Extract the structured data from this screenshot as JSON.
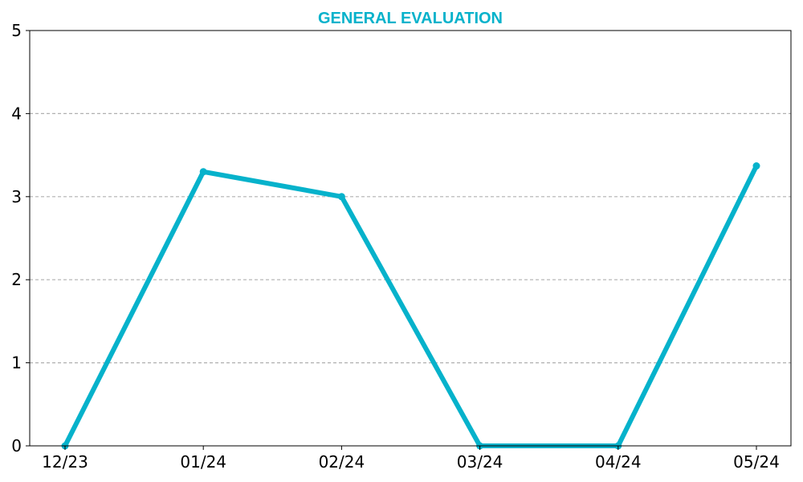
{
  "chart_data": {
    "type": "line",
    "title": "GENERAL EVALUATION",
    "xlabel": "",
    "ylabel": "",
    "categories": [
      "12/23",
      "01/24",
      "02/24",
      "03/24",
      "04/24",
      "05/24"
    ],
    "series": [
      {
        "values": [
          0,
          3.3,
          3.0,
          0,
          0,
          3.37
        ]
      }
    ],
    "ylim": [
      0,
      5
    ],
    "yticks": [
      "0",
      "1",
      "2",
      "3",
      "4",
      "5"
    ],
    "grid": {
      "y": true,
      "x": false,
      "style": "dashed"
    },
    "legend": "none",
    "colors": {
      "line": "#06b2cb",
      "title": "#06b2cb",
      "grid": "#b0b0b0",
      "axis": "#000000"
    }
  }
}
